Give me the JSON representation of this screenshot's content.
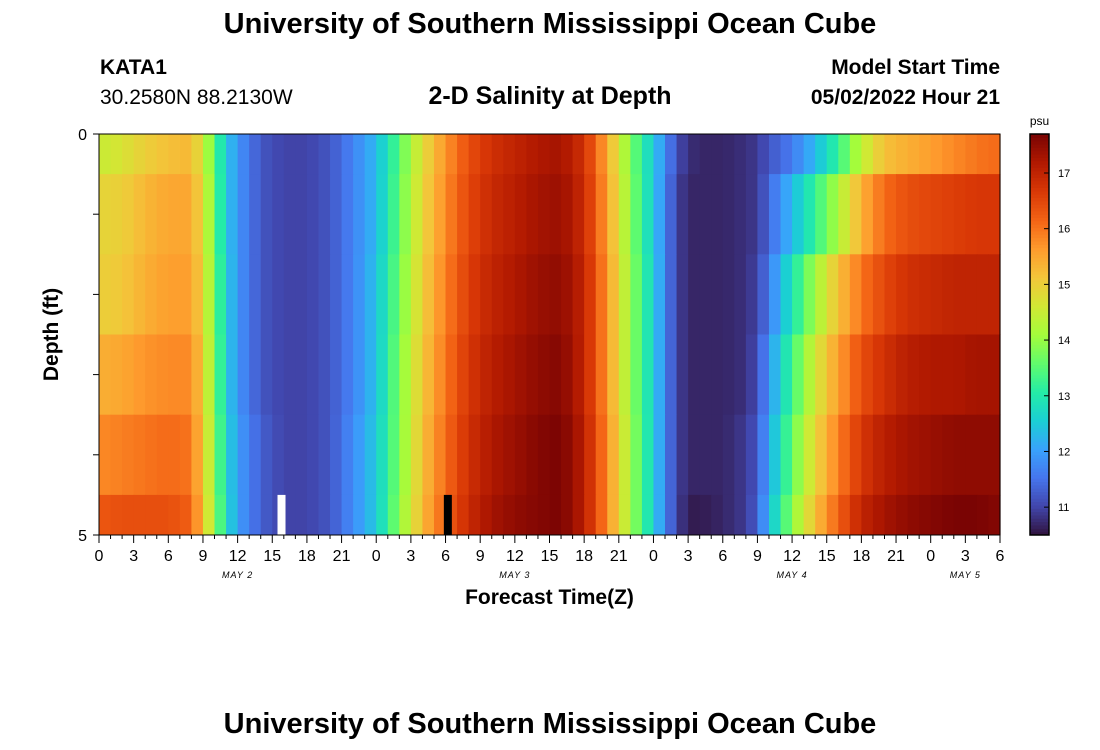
{
  "header": {
    "title": "University of Southern Mississippi Ocean Cube",
    "station_id": "KATA1",
    "coordinates": "30.2580N  88.2130W",
    "plot_title": "2-D Salinity at Depth",
    "start_time_label": "Model Start Time",
    "start_time_value": "05/02/2022 Hour 21"
  },
  "footer": {
    "title": "University of Southern Mississippi Ocean Cube"
  },
  "chart_data": {
    "type": "heatmap",
    "title": "2-D Salinity at Depth",
    "xlabel": "Forecast Time(Z)",
    "ylabel": "Depth (ft)",
    "x_tick_labels": [
      "0",
      "3",
      "6",
      "9",
      "12",
      "15",
      "18",
      "21",
      "0",
      "3",
      "6",
      "9",
      "12",
      "15",
      "18",
      "21",
      "0",
      "3",
      "6",
      "9",
      "12",
      "15",
      "18",
      "21",
      "0",
      "3",
      "6"
    ],
    "date_labels": [
      {
        "label": "MAY 2",
        "hour": 12
      },
      {
        "label": "MAY 3",
        "hour": 36
      },
      {
        "label": "MAY 4",
        "hour": 60
      },
      {
        "label": "MAY 5",
        "hour": 75
      }
    ],
    "xlim_hours": [
      0,
      78
    ],
    "y_tick_labels": [
      "0",
      "5"
    ],
    "ylim_ft": [
      0,
      5
    ],
    "depth_bands_ft": [
      0,
      0.5,
      1.5,
      2.5,
      3.5,
      4.5,
      5
    ],
    "colorbar": {
      "unit": "psu",
      "ticks": [
        "11",
        "12",
        "13",
        "14",
        "15",
        "16",
        "17"
      ],
      "range": [
        10.5,
        17.7
      ],
      "colors": [
        "#30123b",
        "#4145ab",
        "#4675ed",
        "#39a2fc",
        "#1bcfd4",
        "#24eca6",
        "#61fc6c",
        "#a4fc3b",
        "#d1e834",
        "#f3c63a",
        "#fe9b2d",
        "#f36315",
        "#d93806",
        "#b11901",
        "#7a0403"
      ]
    },
    "profile_hours": [
      0,
      2,
      4,
      6,
      8,
      9,
      10,
      11,
      12,
      14,
      16,
      18,
      20,
      22,
      24,
      26,
      28,
      30,
      32,
      34,
      36,
      38,
      40,
      42,
      44,
      46,
      48,
      49,
      50,
      51,
      52,
      54,
      56,
      57,
      58,
      60,
      62,
      64,
      66,
      68,
      70,
      72,
      74,
      76,
      78
    ],
    "salinity_profiles": [
      [
        14.5,
        14.7,
        15.0,
        15.2,
        15.3,
        14.6,
        13.5,
        12.5,
        11.9,
        11.2,
        11.0,
        11.0,
        11.2,
        11.7,
        12.3,
        13.5,
        14.8,
        15.7,
        16.4,
        16.8,
        17.0,
        17.2,
        17.3,
        16.8,
        15.5,
        13.8,
        12.5,
        11.8,
        11.1,
        10.8,
        10.7,
        10.7,
        10.8,
        10.9,
        11.2,
        11.6,
        12.3,
        13.2,
        14.4,
        15.2,
        15.4,
        15.6,
        15.8,
        16.0,
        16.1
      ],
      [
        14.9,
        15.0,
        15.3,
        15.5,
        15.5,
        14.8,
        13.6,
        12.5,
        11.9,
        11.2,
        11.0,
        11.0,
        11.2,
        11.7,
        12.3,
        13.6,
        14.9,
        15.8,
        16.5,
        16.9,
        17.1,
        17.3,
        17.4,
        16.9,
        15.6,
        13.9,
        12.5,
        11.7,
        11.0,
        10.7,
        10.7,
        10.7,
        10.8,
        10.9,
        11.4,
        12.3,
        13.2,
        14.2,
        15.4,
        16.1,
        16.4,
        16.5,
        16.6,
        16.7,
        16.7
      ],
      [
        15.0,
        15.1,
        15.4,
        15.6,
        15.6,
        14.9,
        13.7,
        12.6,
        11.9,
        11.2,
        11.0,
        11.0,
        11.2,
        11.7,
        12.4,
        13.7,
        15.0,
        15.9,
        16.6,
        17.0,
        17.2,
        17.4,
        17.5,
        17.0,
        15.7,
        14.0,
        12.6,
        11.7,
        11.0,
        10.7,
        10.7,
        10.7,
        10.8,
        11.0,
        11.6,
        12.9,
        14.1,
        15.2,
        16.0,
        16.5,
        16.8,
        16.9,
        17.0,
        17.0,
        17.0
      ],
      [
        15.4,
        15.5,
        15.7,
        15.8,
        15.8,
        15.0,
        13.8,
        12.6,
        11.9,
        11.2,
        11.0,
        11.0,
        11.2,
        11.7,
        12.4,
        13.8,
        15.1,
        16.0,
        16.7,
        17.1,
        17.3,
        17.5,
        17.6,
        17.0,
        15.7,
        14.0,
        12.6,
        11.7,
        11.0,
        10.7,
        10.7,
        10.7,
        10.8,
        11.1,
        11.9,
        13.3,
        14.6,
        15.6,
        16.4,
        16.8,
        17.1,
        17.2,
        17.2,
        17.3,
        17.3
      ],
      [
        15.8,
        15.9,
        16.0,
        16.1,
        16.0,
        15.1,
        13.9,
        12.7,
        12.0,
        11.3,
        11.0,
        11.0,
        11.2,
        11.8,
        12.5,
        13.8,
        15.2,
        16.1,
        16.8,
        17.2,
        17.4,
        17.6,
        17.7,
        17.1,
        15.8,
        14.1,
        12.6,
        11.7,
        11.0,
        10.7,
        10.7,
        10.7,
        10.9,
        11.2,
        12.1,
        13.6,
        14.9,
        15.9,
        16.7,
        17.1,
        17.3,
        17.4,
        17.5,
        17.5,
        17.5
      ],
      [
        16.3,
        16.4,
        16.4,
        16.4,
        16.2,
        15.2,
        14.0,
        12.8,
        12.0,
        11.3,
        11.0,
        11.0,
        11.2,
        11.8,
        12.5,
        13.9,
        15.3,
        16.2,
        16.9,
        17.3,
        17.5,
        17.6,
        17.7,
        17.1,
        15.8,
        14.1,
        12.6,
        11.7,
        11.0,
        10.6,
        10.6,
        10.7,
        10.9,
        11.3,
        12.3,
        13.9,
        15.2,
        16.2,
        17.0,
        17.3,
        17.5,
        17.6,
        17.7,
        17.7,
        17.6
      ]
    ],
    "markers": [
      {
        "hour": 15.8,
        "color": "#ffffff"
      },
      {
        "hour": 30.2,
        "color": "#000000"
      }
    ]
  }
}
